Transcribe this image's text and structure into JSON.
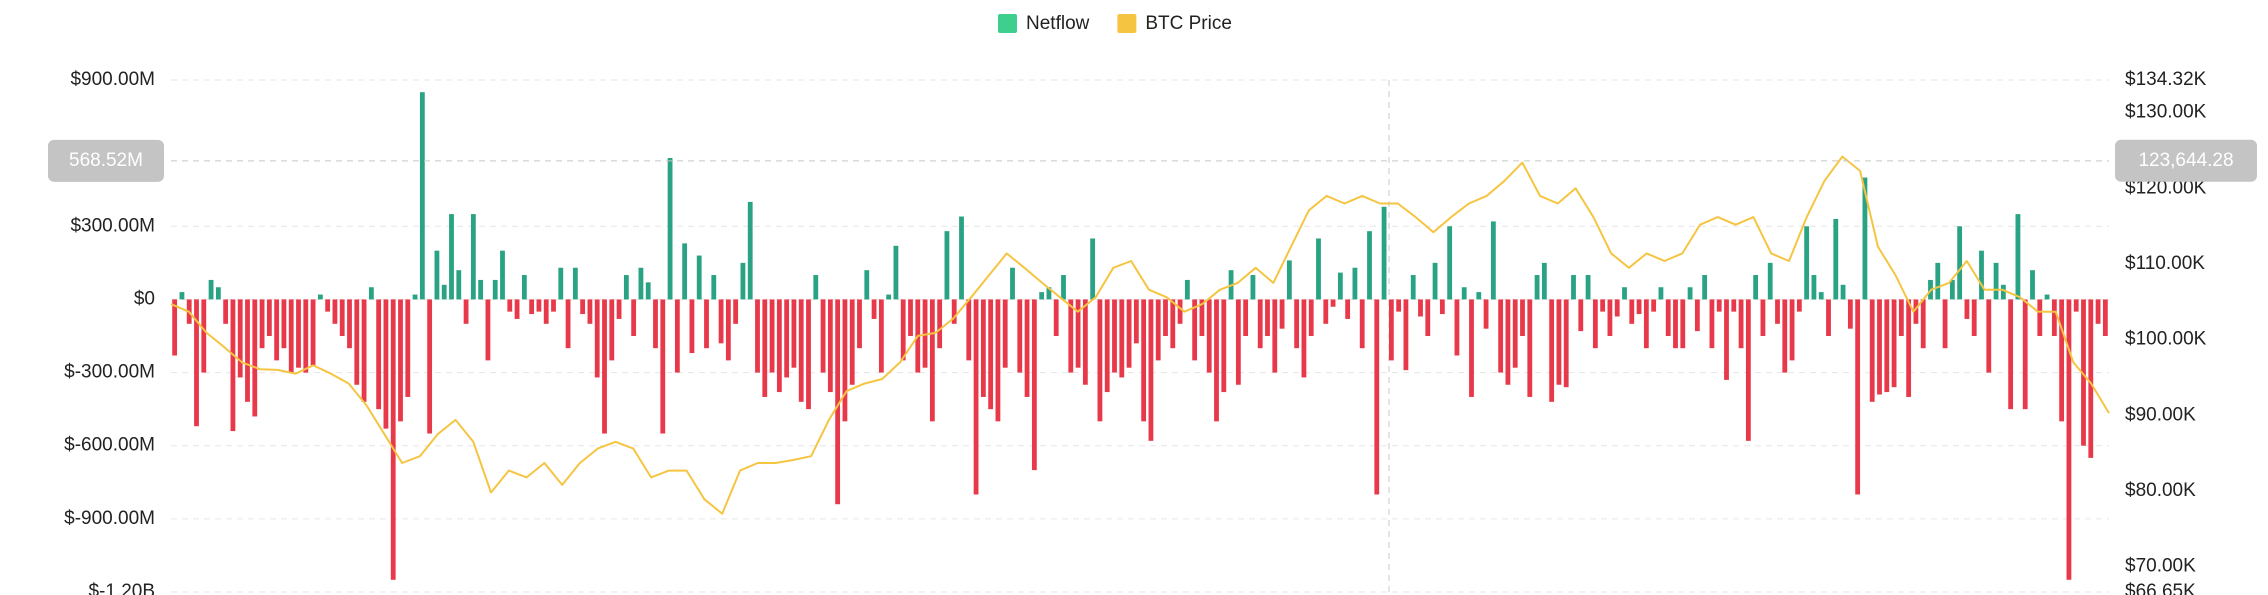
{
  "chart_data": {
    "type": "bar-line",
    "legend_position": "top",
    "grid": true,
    "ylim": [
      -1200,
      900
    ],
    "yticks": [
      {
        "value": 900,
        "label": "$900.00M"
      },
      {
        "value": 300,
        "label": "$300.00M"
      },
      {
        "value": 0,
        "label": "$0"
      },
      {
        "value": -300,
        "label": "$-300.00M"
      },
      {
        "value": -600,
        "label": "$-600.00M"
      },
      {
        "value": -900,
        "label": "$-900.00M"
      },
      {
        "value": -1200,
        "label": "$-1.20B"
      }
    ],
    "y2lim": [
      66.65,
      134.32
    ],
    "y2ticks": [
      {
        "value": 134.32,
        "label": "$134.32K"
      },
      {
        "value": 130,
        "label": "$130.00K"
      },
      {
        "value": 120,
        "label": "$120.00K"
      },
      {
        "value": 110,
        "label": "$110.00K"
      },
      {
        "value": 100,
        "label": "$100.00K"
      },
      {
        "value": 90,
        "label": "$90.00K"
      },
      {
        "value": 80,
        "label": "$80.00K"
      },
      {
        "value": 70,
        "label": "$70.00K"
      },
      {
        "value": 66.65,
        "label": "$66.65K"
      }
    ],
    "crosshair": {
      "y": {
        "value": 568.52,
        "label": "568.52M"
      },
      "y2": {
        "value": 123.64428,
        "label": "123,644.28"
      }
    },
    "series": [
      {
        "name": "Netflow",
        "type": "bar",
        "color": "#29a383",
        "negative_color": "#e8394a",
        "legend_color": "#3ecf8e",
        "values": [
          -230,
          30,
          -100,
          -520,
          -300,
          80,
          50,
          -100,
          -540,
          -320,
          -420,
          -480,
          -200,
          -150,
          -250,
          -200,
          -300,
          -280,
          -300,
          -270,
          20,
          -50,
          -100,
          -150,
          -200,
          -350,
          -420,
          50,
          -450,
          -530,
          -1150,
          -500,
          -400,
          20,
          850,
          -550,
          200,
          60,
          350,
          120,
          -100,
          350,
          80,
          -250,
          80,
          200,
          -50,
          -80,
          100,
          -60,
          -50,
          -100,
          -50,
          130,
          -200,
          130,
          -60,
          -100,
          -320,
          -550,
          -250,
          -80,
          100,
          -150,
          130,
          70,
          -200,
          -550,
          580,
          -300,
          230,
          -220,
          180,
          -200,
          100,
          -180,
          -250,
          -100,
          150,
          400,
          -300,
          -400,
          -300,
          -380,
          -320,
          -280,
          -420,
          -450,
          100,
          -300,
          -380,
          -840,
          -500,
          -350,
          -200,
          120,
          -80,
          -300,
          20,
          220,
          -250,
          -150,
          -300,
          -280,
          -500,
          -200,
          280,
          -100,
          340,
          -250,
          -800,
          -400,
          -450,
          -500,
          -280,
          130,
          -300,
          -400,
          -700,
          30,
          50,
          -150,
          100,
          -300,
          -280,
          -350,
          250,
          -500,
          -380,
          -300,
          -320,
          -280,
          -180,
          -500,
          -580,
          -250,
          -150,
          -200,
          -100,
          80,
          -250,
          -150,
          -300,
          -500,
          -380,
          120,
          -350,
          -150,
          100,
          -200,
          -150,
          -300,
          -120,
          160,
          -200,
          -320,
          -150,
          250,
          -100,
          -30,
          110,
          -80,
          130,
          -200,
          280,
          -800,
          380,
          -250,
          -50,
          -290,
          100,
          -70,
          -150,
          150,
          -60,
          300,
          -230,
          50,
          -400,
          30,
          -120,
          320,
          -300,
          -350,
          -280,
          -150,
          -400,
          100,
          150,
          -420,
          -350,
          -360,
          100,
          -130,
          100,
          -200,
          -50,
          -150,
          -70,
          50,
          -100,
          -60,
          -200,
          -50,
          50,
          -150,
          -200,
          -200,
          50,
          -130,
          100,
          -200,
          -50,
          -330,
          -50,
          -200,
          -580,
          100,
          -150,
          150,
          -100,
          -300,
          -250,
          -50,
          300,
          100,
          30,
          -150,
          330,
          60,
          -120,
          -800,
          500,
          -420,
          -390,
          -380,
          -360,
          -150,
          -400,
          -100,
          -200,
          80,
          150,
          -200,
          80,
          300,
          -80,
          -150,
          200,
          -300,
          150,
          60,
          -450,
          350,
          -450,
          120,
          -150,
          20,
          -150,
          -500,
          -1150,
          -50,
          -600,
          -650,
          -100,
          -150
        ]
      },
      {
        "name": "BTC Price",
        "type": "line",
        "axis": "y2",
        "color": "#f5c542",
        "values": [
          104.7,
          103.7,
          100.9,
          99,
          97,
          96.1,
          96,
          95.5,
          96.6,
          95.5,
          94.2,
          91.3,
          87.5,
          83.7,
          84.6,
          87.5,
          89.4,
          86.5,
          79.8,
          82.7,
          81.8,
          83.7,
          80.8,
          83.7,
          85.6,
          86.5,
          85.6,
          81.8,
          82.7,
          82.7,
          78.9,
          77,
          82.7,
          83.7,
          83.7,
          84.1,
          84.6,
          89.4,
          93.2,
          94.2,
          94.8,
          97,
          100.5,
          100.9,
          102.8,
          105.6,
          108.5,
          111.4,
          109.5,
          107.5,
          105.6,
          103.7,
          105.6,
          109.5,
          110.4,
          106.6,
          105.6,
          103.7,
          104.7,
          106.6,
          107.5,
          109.5,
          107.5,
          112.3,
          117.1,
          119,
          118,
          119,
          118,
          118,
          116.2,
          114.2,
          116.2,
          118,
          119,
          121,
          123.4,
          119,
          118,
          120,
          116.2,
          111.4,
          109.5,
          111.4,
          110.4,
          111.4,
          115.2,
          116.2,
          115.2,
          116.2,
          111.4,
          110.4,
          116.2,
          121,
          124.2,
          122.3,
          112.3,
          108.5,
          103.7,
          106.6,
          107.5,
          110.4,
          106.6,
          106.6,
          105.6,
          103.7,
          103.7,
          97,
          94.2,
          90.3
        ]
      }
    ]
  }
}
